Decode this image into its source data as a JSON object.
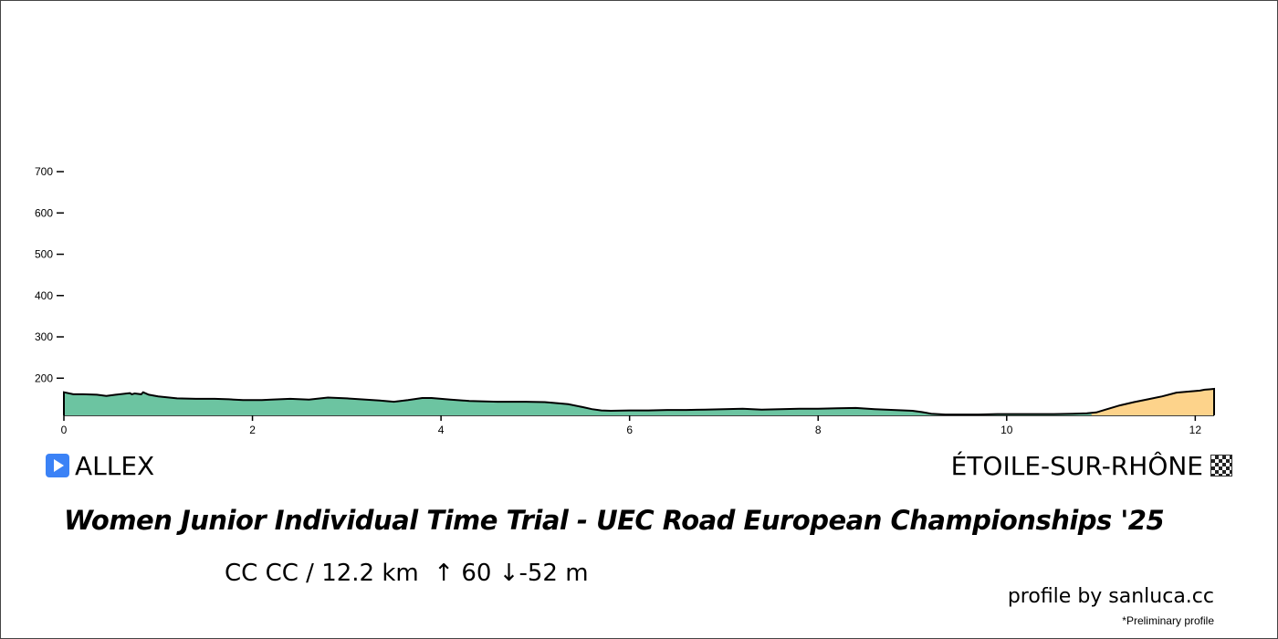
{
  "chart_data": {
    "type": "area",
    "xlabel": "",
    "ylabel": "",
    "xlim": [
      0,
      12.2
    ],
    "ylim": [
      110,
      700
    ],
    "x_ticks": [
      0,
      2,
      4,
      6,
      8,
      10,
      12
    ],
    "y_ticks": [
      200,
      300,
      400,
      500,
      600,
      700
    ],
    "segments": [
      {
        "x_start": 0,
        "x_end": 10.9,
        "color": "#6cc4a1"
      },
      {
        "x_start": 10.9,
        "x_end": 12.2,
        "color": "#fdd38b"
      }
    ],
    "elevation": {
      "x": [
        0,
        0.1,
        0.2,
        0.35,
        0.45,
        0.55,
        0.7,
        0.72,
        0.75,
        0.82,
        0.84,
        0.9,
        1.0,
        1.2,
        1.4,
        1.6,
        1.75,
        1.9,
        2.1,
        2.2,
        2.4,
        2.6,
        2.8,
        3.0,
        3.2,
        3.35,
        3.5,
        3.65,
        3.8,
        3.9,
        4.1,
        4.3,
        4.6,
        4.9,
        5.1,
        5.2,
        5.35,
        5.5,
        5.6,
        5.7,
        5.8,
        6.0,
        6.2,
        6.4,
        6.6,
        6.8,
        7.0,
        7.2,
        7.4,
        7.6,
        7.8,
        8.0,
        8.2,
        8.4,
        8.6,
        8.8,
        9.0,
        9.1,
        9.2,
        9.35,
        9.5,
        9.7,
        9.9,
        10.1,
        10.3,
        10.5,
        10.7,
        10.85,
        10.95,
        11.05,
        11.2,
        11.35,
        11.5,
        11.65,
        11.8,
        11.95,
        12.05,
        12.1,
        12.15,
        12.2
      ],
      "y": [
        166,
        161,
        161,
        160,
        157,
        160,
        164,
        161,
        163,
        161,
        166,
        160,
        156,
        151,
        150,
        150,
        149,
        147,
        147,
        148,
        150,
        148,
        153,
        151,
        148,
        146,
        143,
        147,
        152,
        152,
        148,
        145,
        143,
        143,
        142,
        140,
        137,
        130,
        125,
        122,
        121,
        122,
        122,
        123,
        123,
        124,
        125,
        126,
        124,
        125,
        126,
        126,
        127,
        128,
        125,
        123,
        121,
        118,
        114,
        112,
        112,
        112,
        113,
        113,
        113,
        113,
        114,
        115,
        117,
        124,
        134,
        142,
        149,
        156,
        165,
        168,
        170,
        172,
        173,
        174
      ]
    }
  },
  "labels": {
    "start": "ALLEX",
    "finish": "ÉTOILE-SUR-RHÔNE",
    "start_icon": "play-icon",
    "finish_icon": "checkered-flag-icon"
  },
  "title": "Women Junior Individual Time Trial - UEC Road European Championships '25",
  "stats": {
    "category": "CC CC",
    "separator": "/",
    "distance": "12.2 km",
    "climb": "↑ 60",
    "descent": "↓-52 m"
  },
  "credit": "profile by sanluca.cc",
  "note": "*Preliminary profile"
}
